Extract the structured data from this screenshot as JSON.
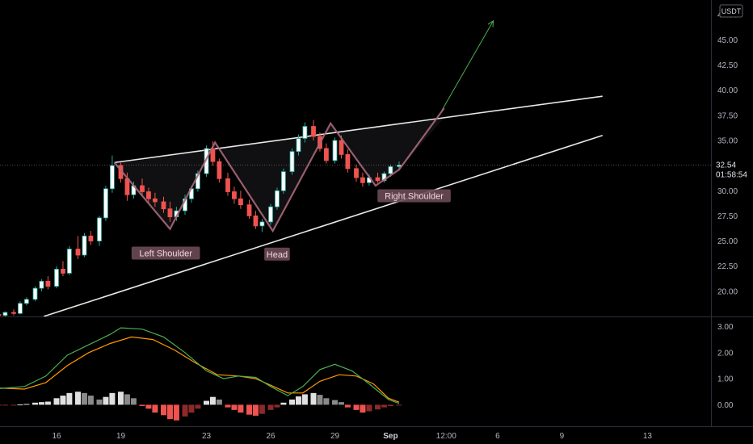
{
  "currency": "USDT",
  "price_label": {
    "value": "32.54",
    "timer": "01:58:54"
  },
  "colors": {
    "up": "#26a69a",
    "down": "#ef5350",
    "up_fill": "#ffffff",
    "pattern_line": "#a86878",
    "trend_line": "#e8e8e8",
    "macd": "#4caf50",
    "signal": "#ff9800",
    "hist_pos": "#e0e0e0",
    "hist_pos_fade": "#8a8a8a",
    "hist_neg": "#ef5350",
    "hist_neg_fade": "#8b2a2a",
    "target_arrow": "#4caf50",
    "label_bg": "#6b4a57"
  },
  "chart_data": {
    "type": "candlestick",
    "price_axis": {
      "ylim": [
        17.5,
        48.0
      ],
      "ticks": [
        "20.00",
        "22.50",
        "25.00",
        "27.50",
        "30.00",
        "32.50",
        "35.00",
        "37.50",
        "40.00",
        "42.50",
        "45.00",
        "47.50"
      ]
    },
    "macd_axis": {
      "ylim": [
        -0.7,
        3.2
      ],
      "ticks": [
        "0.00",
        "1.00",
        "2.00",
        "3.00"
      ]
    },
    "x_tick_labels": [
      "16",
      "19",
      "23",
      "26",
      "29",
      "Sep",
      "12:00",
      "6",
      "9",
      "13"
    ],
    "annotations": [
      "Left Shoulder",
      "Head",
      "Right Shoulder"
    ],
    "pattern_points": [
      [
        18.7,
        32.8
      ],
      [
        21.3,
        26.2
      ],
      [
        23.4,
        34.8
      ],
      [
        26.1,
        26.0
      ],
      [
        28.8,
        36.7
      ],
      [
        30.9,
        30.5
      ],
      [
        32.0,
        32.1
      ],
      [
        34.1,
        38.2
      ]
    ],
    "resistance_line": [
      [
        18.7,
        32.8
      ],
      [
        41.5,
        39.4
      ]
    ],
    "support_line": [
      [
        15.4,
        17.5
      ],
      [
        41.5,
        35.5
      ]
    ],
    "target_arrow": [
      [
        34.0,
        38.0
      ],
      [
        36.4,
        46.9
      ]
    ],
    "candles": [
      [
        13.0,
        17.6,
        17.8,
        17.4,
        17.7
      ],
      [
        13.3,
        17.7,
        17.9,
        17.5,
        17.6
      ],
      [
        13.6,
        17.6,
        18.0,
        17.5,
        17.9
      ],
      [
        14.0,
        17.9,
        18.2,
        17.6,
        17.8
      ],
      [
        14.3,
        17.8,
        19.0,
        17.7,
        18.8
      ],
      [
        14.6,
        18.8,
        19.4,
        18.6,
        19.2
      ],
      [
        15.0,
        19.2,
        20.5,
        19.0,
        20.3
      ],
      [
        15.3,
        20.3,
        21.2,
        20.0,
        21.0
      ],
      [
        15.6,
        21.0,
        21.5,
        20.2,
        20.5
      ],
      [
        16.0,
        20.5,
        22.5,
        20.3,
        22.2
      ],
      [
        16.3,
        22.2,
        23.0,
        21.5,
        21.8
      ],
      [
        16.6,
        21.8,
        24.5,
        21.6,
        24.2
      ],
      [
        17.0,
        24.2,
        25.5,
        23.2,
        23.6
      ],
      [
        17.3,
        23.6,
        25.8,
        23.4,
        25.5
      ],
      [
        17.6,
        25.5,
        26.0,
        24.6,
        25.0
      ],
      [
        18.0,
        25.0,
        27.5,
        24.5,
        27.3
      ],
      [
        18.3,
        27.3,
        30.5,
        27.0,
        30.2
      ],
      [
        18.6,
        30.2,
        33.5,
        29.8,
        32.5
      ],
      [
        19.0,
        32.5,
        32.8,
        30.8,
        31.2
      ],
      [
        19.3,
        31.2,
        31.8,
        29.0,
        29.6
      ],
      [
        19.6,
        29.6,
        30.9,
        29.2,
        30.5
      ],
      [
        20.0,
        30.5,
        31.2,
        29.5,
        29.9
      ],
      [
        20.3,
        29.9,
        30.3,
        28.8,
        29.2
      ],
      [
        20.6,
        29.2,
        29.8,
        28.4,
        28.9
      ],
      [
        21.0,
        28.9,
        29.4,
        27.8,
        28.2
      ],
      [
        21.3,
        28.2,
        28.9,
        26.9,
        27.4
      ],
      [
        21.6,
        27.4,
        28.4,
        27.0,
        28.0
      ],
      [
        22.0,
        28.0,
        29.6,
        27.6,
        29.2
      ],
      [
        22.3,
        29.2,
        30.5,
        28.8,
        30.2
      ],
      [
        22.6,
        30.2,
        32.0,
        29.9,
        31.7
      ],
      [
        23.0,
        31.7,
        34.5,
        31.4,
        34.2
      ],
      [
        23.3,
        34.2,
        34.9,
        32.5,
        32.9
      ],
      [
        23.6,
        32.9,
        33.2,
        30.8,
        31.2
      ],
      [
        24.0,
        31.2,
        31.8,
        29.5,
        29.9
      ],
      [
        24.3,
        29.9,
        30.4,
        28.7,
        29.2
      ],
      [
        24.6,
        29.2,
        30.0,
        28.2,
        28.6
      ],
      [
        25.0,
        28.6,
        29.1,
        27.2,
        27.5
      ],
      [
        25.3,
        27.5,
        28.0,
        26.2,
        26.5
      ],
      [
        25.6,
        26.5,
        27.2,
        25.9,
        26.9
      ],
      [
        26.0,
        26.9,
        28.7,
        26.6,
        28.4
      ],
      [
        26.3,
        28.4,
        30.3,
        28.1,
        30.0
      ],
      [
        26.6,
        30.0,
        32.2,
        29.7,
        31.9
      ],
      [
        27.0,
        31.9,
        34.2,
        31.6,
        33.9
      ],
      [
        27.3,
        33.9,
        35.6,
        33.5,
        35.2
      ],
      [
        27.6,
        35.2,
        36.8,
        34.8,
        36.4
      ],
      [
        28.0,
        36.4,
        37.0,
        35.0,
        35.4
      ],
      [
        28.3,
        35.4,
        35.8,
        33.9,
        34.2
      ],
      [
        28.6,
        34.2,
        34.7,
        32.7,
        33.0
      ],
      [
        29.0,
        33.0,
        35.3,
        32.7,
        35.0
      ],
      [
        29.3,
        35.0,
        35.5,
        33.2,
        33.6
      ],
      [
        29.6,
        33.6,
        34.1,
        31.8,
        32.2
      ],
      [
        30.0,
        32.2,
        32.6,
        30.9,
        31.3
      ],
      [
        30.3,
        31.3,
        31.8,
        30.4,
        30.8
      ],
      [
        30.6,
        30.8,
        31.6,
        30.5,
        31.3
      ],
      [
        31.0,
        31.3,
        31.8,
        30.8,
        31.0
      ],
      [
        31.3,
        31.0,
        31.9,
        30.8,
        31.7
      ],
      [
        31.6,
        31.7,
        32.6,
        31.4,
        32.4
      ],
      [
        32.0,
        32.4,
        32.9,
        32.0,
        32.54
      ]
    ],
    "macd_line": [
      [
        13.0,
        0.6
      ],
      [
        14.5,
        0.7
      ],
      [
        15.5,
        1.1
      ],
      [
        16.5,
        1.9
      ],
      [
        17.5,
        2.3
      ],
      [
        18.5,
        2.7
      ],
      [
        19.0,
        2.95
      ],
      [
        20.0,
        2.9
      ],
      [
        21.0,
        2.6
      ],
      [
        22.0,
        2.0
      ],
      [
        23.0,
        1.3
      ],
      [
        23.8,
        1.0
      ],
      [
        24.5,
        1.1
      ],
      [
        25.3,
        1.05
      ],
      [
        26.0,
        0.7
      ],
      [
        26.8,
        0.35
      ],
      [
        27.5,
        0.7
      ],
      [
        28.3,
        1.35
      ],
      [
        29.0,
        1.55
      ],
      [
        29.8,
        1.3
      ],
      [
        30.6,
        0.8
      ],
      [
        31.5,
        0.2
      ],
      [
        32.0,
        0.05
      ]
    ],
    "signal_line": [
      [
        13.0,
        0.65
      ],
      [
        14.5,
        0.6
      ],
      [
        15.5,
        0.85
      ],
      [
        16.5,
        1.5
      ],
      [
        17.5,
        2.0
      ],
      [
        18.5,
        2.35
      ],
      [
        19.5,
        2.6
      ],
      [
        20.5,
        2.5
      ],
      [
        21.5,
        2.1
      ],
      [
        22.5,
        1.6
      ],
      [
        23.5,
        1.15
      ],
      [
        24.5,
        1.1
      ],
      [
        25.3,
        1.0
      ],
      [
        26.0,
        0.75
      ],
      [
        26.8,
        0.45
      ],
      [
        27.5,
        0.45
      ],
      [
        28.3,
        0.9
      ],
      [
        29.2,
        1.15
      ],
      [
        30.0,
        1.1
      ],
      [
        30.8,
        0.8
      ],
      [
        31.5,
        0.25
      ],
      [
        32.0,
        0.1
      ]
    ],
    "histogram": [
      [
        13.0,
        -0.05
      ],
      [
        13.3,
        -0.03
      ],
      [
        13.6,
        -0.02
      ],
      [
        14.0,
        -0.01
      ],
      [
        14.3,
        0.01
      ],
      [
        14.6,
        0.03
      ],
      [
        15.0,
        0.08
      ],
      [
        15.3,
        0.1
      ],
      [
        15.6,
        0.12
      ],
      [
        16.0,
        0.25
      ],
      [
        16.3,
        0.35
      ],
      [
        16.6,
        0.45
      ],
      [
        17.0,
        0.5
      ],
      [
        17.3,
        0.45
      ],
      [
        17.6,
        0.35
      ],
      [
        18.0,
        0.2
      ],
      [
        18.3,
        0.3
      ],
      [
        18.6,
        0.45
      ],
      [
        19.0,
        0.5
      ],
      [
        19.3,
        0.4
      ],
      [
        19.6,
        0.25
      ],
      [
        20.0,
        -0.05
      ],
      [
        20.3,
        -0.15
      ],
      [
        20.6,
        -0.3
      ],
      [
        21.0,
        -0.4
      ],
      [
        21.3,
        -0.55
      ],
      [
        21.6,
        -0.6
      ],
      [
        22.0,
        -0.45
      ],
      [
        22.3,
        -0.3
      ],
      [
        22.6,
        -0.15
      ],
      [
        23.0,
        0.15
      ],
      [
        23.3,
        0.3
      ],
      [
        23.6,
        0.2
      ],
      [
        24.0,
        -0.1
      ],
      [
        24.3,
        -0.2
      ],
      [
        24.6,
        -0.3
      ],
      [
        25.0,
        -0.38
      ],
      [
        25.3,
        -0.42
      ],
      [
        25.6,
        -0.35
      ],
      [
        26.0,
        -0.2
      ],
      [
        26.3,
        -0.1
      ],
      [
        26.6,
        0.08
      ],
      [
        27.0,
        0.2
      ],
      [
        27.3,
        0.32
      ],
      [
        27.6,
        0.4
      ],
      [
        28.0,
        0.45
      ],
      [
        28.3,
        0.38
      ],
      [
        28.6,
        0.25
      ],
      [
        29.0,
        0.18
      ],
      [
        29.3,
        0.1
      ],
      [
        29.6,
        -0.1
      ],
      [
        30.0,
        -0.2
      ],
      [
        30.3,
        -0.3
      ],
      [
        30.6,
        -0.25
      ],
      [
        31.0,
        -0.18
      ],
      [
        31.3,
        -0.1
      ],
      [
        31.6,
        -0.05
      ],
      [
        32.0,
        -0.02
      ]
    ]
  }
}
